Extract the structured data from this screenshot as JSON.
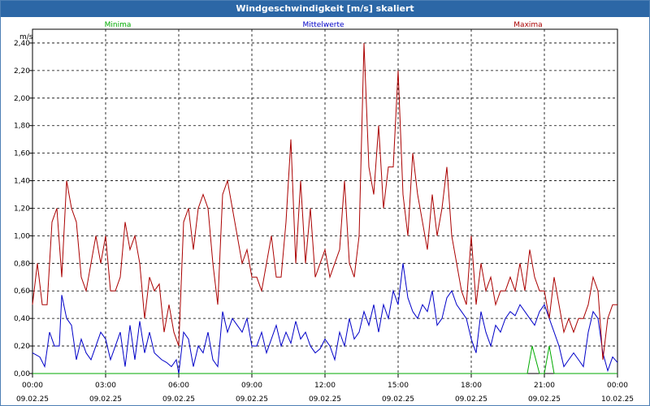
{
  "window": {
    "title": "Windgeschwindigkeit [m/s] skaliert"
  },
  "colors": {
    "minima": "#00aa00",
    "mittel": "#0000c8",
    "maxima": "#aa0000",
    "grid": "#000000",
    "titlebar": "#2c67a6"
  },
  "chart_data": {
    "type": "line",
    "title": "Windgeschwindigkeit [m/s] skaliert",
    "ylabel": "m/s",
    "ylim": [
      0,
      2.5
    ],
    "yticks": [
      "0,00",
      "0,20",
      "0,40",
      "0,60",
      "0,80",
      "1,00",
      "1,20",
      "1,40",
      "1,60",
      "1,80",
      "2,00",
      "2,20",
      "2,40"
    ],
    "xticks": [
      {
        "time": "00:00",
        "date": "09.02.25"
      },
      {
        "time": "03:00",
        "date": "09.02.25"
      },
      {
        "time": "06:00",
        "date": "09.02.25"
      },
      {
        "time": "09:00",
        "date": "09.02.25"
      },
      {
        "time": "12:00",
        "date": "09.02.25"
      },
      {
        "time": "15:00",
        "date": "09.02.25"
      },
      {
        "time": "18:00",
        "date": "09.02.25"
      },
      {
        "time": "21:00",
        "date": "09.02.25"
      },
      {
        "time": "00:00",
        "date": "10.02.25"
      }
    ],
    "x_unit": "hours since 09.02.25 00:00",
    "grid": true,
    "legend": "top",
    "series": [
      {
        "name": "Minima",
        "color": "#00aa00",
        "values": [
          [
            0,
            0
          ],
          [
            20.3,
            0
          ],
          [
            20.5,
            0.2
          ],
          [
            20.8,
            0
          ],
          [
            21,
            0
          ],
          [
            21.2,
            0.2
          ],
          [
            21.4,
            0
          ],
          [
            24,
            0
          ]
        ]
      },
      {
        "name": "Mittelwerte",
        "color": "#0000c8",
        "values": [
          [
            0,
            0.15
          ],
          [
            0.3,
            0.12
          ],
          [
            0.5,
            0.05
          ],
          [
            0.7,
            0.3
          ],
          [
            0.9,
            0.2
          ],
          [
            1.1,
            0.2
          ],
          [
            1.2,
            0.57
          ],
          [
            1.4,
            0.4
          ],
          [
            1.6,
            0.35
          ],
          [
            1.8,
            0.1
          ],
          [
            2.0,
            0.25
          ],
          [
            2.2,
            0.15
          ],
          [
            2.4,
            0.1
          ],
          [
            2.6,
            0.2
          ],
          [
            2.8,
            0.3
          ],
          [
            3.0,
            0.25
          ],
          [
            3.2,
            0.1
          ],
          [
            3.4,
            0.2
          ],
          [
            3.6,
            0.3
          ],
          [
            3.8,
            0.05
          ],
          [
            4.0,
            0.35
          ],
          [
            4.2,
            0.1
          ],
          [
            4.4,
            0.38
          ],
          [
            4.6,
            0.15
          ],
          [
            4.8,
            0.3
          ],
          [
            5.0,
            0.15
          ],
          [
            5.3,
            0.1
          ],
          [
            5.5,
            0.08
          ],
          [
            5.7,
            0.05
          ],
          [
            5.9,
            0.1
          ],
          [
            6.0,
            0.0
          ],
          [
            6.2,
            0.3
          ],
          [
            6.4,
            0.25
          ],
          [
            6.6,
            0.05
          ],
          [
            6.8,
            0.2
          ],
          [
            7.0,
            0.15
          ],
          [
            7.2,
            0.3
          ],
          [
            7.4,
            0.1
          ],
          [
            7.6,
            0.05
          ],
          [
            7.8,
            0.45
          ],
          [
            8.0,
            0.3
          ],
          [
            8.2,
            0.4
          ],
          [
            8.4,
            0.35
          ],
          [
            8.6,
            0.3
          ],
          [
            8.8,
            0.4
          ],
          [
            9.0,
            0.2
          ],
          [
            9.2,
            0.2
          ],
          [
            9.4,
            0.3
          ],
          [
            9.6,
            0.15
          ],
          [
            9.8,
            0.25
          ],
          [
            10.0,
            0.35
          ],
          [
            10.2,
            0.2
          ],
          [
            10.4,
            0.3
          ],
          [
            10.6,
            0.22
          ],
          [
            10.8,
            0.38
          ],
          [
            11.0,
            0.25
          ],
          [
            11.2,
            0.3
          ],
          [
            11.4,
            0.2
          ],
          [
            11.6,
            0.15
          ],
          [
            11.8,
            0.18
          ],
          [
            12.0,
            0.25
          ],
          [
            12.2,
            0.2
          ],
          [
            12.4,
            0.1
          ],
          [
            12.6,
            0.3
          ],
          [
            12.8,
            0.2
          ],
          [
            13.0,
            0.4
          ],
          [
            13.2,
            0.25
          ],
          [
            13.4,
            0.3
          ],
          [
            13.6,
            0.45
          ],
          [
            13.8,
            0.35
          ],
          [
            14.0,
            0.5
          ],
          [
            14.2,
            0.3
          ],
          [
            14.4,
            0.5
          ],
          [
            14.6,
            0.4
          ],
          [
            14.8,
            0.6
          ],
          [
            15.0,
            0.5
          ],
          [
            15.2,
            0.8
          ],
          [
            15.4,
            0.55
          ],
          [
            15.6,
            0.45
          ],
          [
            15.8,
            0.4
          ],
          [
            16.0,
            0.5
          ],
          [
            16.2,
            0.45
          ],
          [
            16.4,
            0.6
          ],
          [
            16.6,
            0.35
          ],
          [
            16.8,
            0.4
          ],
          [
            17.0,
            0.55
          ],
          [
            17.2,
            0.6
          ],
          [
            17.4,
            0.5
          ],
          [
            17.6,
            0.45
          ],
          [
            17.8,
            0.4
          ],
          [
            18.0,
            0.25
          ],
          [
            18.2,
            0.15
          ],
          [
            18.4,
            0.45
          ],
          [
            18.6,
            0.3
          ],
          [
            18.8,
            0.2
          ],
          [
            19.0,
            0.35
          ],
          [
            19.2,
            0.3
          ],
          [
            19.4,
            0.4
          ],
          [
            19.6,
            0.45
          ],
          [
            19.8,
            0.42
          ],
          [
            20.0,
            0.5
          ],
          [
            20.2,
            0.45
          ],
          [
            20.4,
            0.4
          ],
          [
            20.6,
            0.35
          ],
          [
            20.8,
            0.45
          ],
          [
            21.0,
            0.5
          ],
          [
            21.2,
            0.4
          ],
          [
            21.4,
            0.3
          ],
          [
            21.6,
            0.2
          ],
          [
            21.8,
            0.05
          ],
          [
            22.0,
            0.1
          ],
          [
            22.2,
            0.15
          ],
          [
            22.4,
            0.1
          ],
          [
            22.6,
            0.05
          ],
          [
            22.8,
            0.3
          ],
          [
            23.0,
            0.45
          ],
          [
            23.2,
            0.4
          ],
          [
            23.4,
            0.15
          ],
          [
            23.6,
            0.02
          ],
          [
            23.8,
            0.12
          ],
          [
            24.0,
            0.08
          ]
        ]
      },
      {
        "name": "Maxima",
        "color": "#aa0000",
        "values": [
          [
            0,
            0.5
          ],
          [
            0.2,
            0.8
          ],
          [
            0.4,
            0.5
          ],
          [
            0.6,
            0.5
          ],
          [
            0.8,
            1.1
          ],
          [
            1.0,
            1.2
          ],
          [
            1.2,
            0.7
          ],
          [
            1.4,
            1.4
          ],
          [
            1.6,
            1.2
          ],
          [
            1.8,
            1.1
          ],
          [
            2.0,
            0.7
          ],
          [
            2.2,
            0.6
          ],
          [
            2.4,
            0.8
          ],
          [
            2.6,
            1.0
          ],
          [
            2.8,
            0.8
          ],
          [
            3.0,
            1.0
          ],
          [
            3.2,
            0.6
          ],
          [
            3.4,
            0.6
          ],
          [
            3.6,
            0.7
          ],
          [
            3.8,
            1.1
          ],
          [
            4.0,
            0.9
          ],
          [
            4.2,
            1.0
          ],
          [
            4.4,
            0.8
          ],
          [
            4.6,
            0.4
          ],
          [
            4.8,
            0.7
          ],
          [
            5.0,
            0.6
          ],
          [
            5.2,
            0.65
          ],
          [
            5.4,
            0.3
          ],
          [
            5.6,
            0.5
          ],
          [
            5.8,
            0.3
          ],
          [
            6.0,
            0.2
          ],
          [
            6.2,
            1.1
          ],
          [
            6.4,
            1.2
          ],
          [
            6.6,
            0.9
          ],
          [
            6.8,
            1.2
          ],
          [
            7.0,
            1.3
          ],
          [
            7.2,
            1.2
          ],
          [
            7.4,
            0.8
          ],
          [
            7.6,
            0.5
          ],
          [
            7.8,
            1.3
          ],
          [
            8.0,
            1.4
          ],
          [
            8.2,
            1.2
          ],
          [
            8.4,
            1.0
          ],
          [
            8.6,
            0.8
          ],
          [
            8.8,
            0.9
          ],
          [
            9.0,
            0.7
          ],
          [
            9.2,
            0.7
          ],
          [
            9.4,
            0.6
          ],
          [
            9.6,
            0.8
          ],
          [
            9.8,
            1.0
          ],
          [
            10.0,
            0.7
          ],
          [
            10.2,
            0.7
          ],
          [
            10.4,
            1.1
          ],
          [
            10.6,
            1.7
          ],
          [
            10.8,
            0.8
          ],
          [
            11.0,
            1.4
          ],
          [
            11.2,
            0.8
          ],
          [
            11.4,
            1.2
          ],
          [
            11.6,
            0.7
          ],
          [
            11.8,
            0.8
          ],
          [
            12.0,
            0.9
          ],
          [
            12.2,
            0.7
          ],
          [
            12.4,
            0.8
          ],
          [
            12.6,
            0.9
          ],
          [
            12.8,
            1.4
          ],
          [
            13.0,
            0.8
          ],
          [
            13.2,
            0.7
          ],
          [
            13.4,
            1.0
          ],
          [
            13.6,
            2.4
          ],
          [
            13.8,
            1.5
          ],
          [
            14.0,
            1.3
          ],
          [
            14.2,
            1.8
          ],
          [
            14.4,
            1.2
          ],
          [
            14.6,
            1.5
          ],
          [
            14.8,
            1.5
          ],
          [
            15.0,
            2.2
          ],
          [
            15.2,
            1.3
          ],
          [
            15.4,
            1.0
          ],
          [
            15.6,
            1.6
          ],
          [
            15.8,
            1.3
          ],
          [
            16.0,
            1.1
          ],
          [
            16.2,
            0.9
          ],
          [
            16.4,
            1.3
          ],
          [
            16.6,
            1.0
          ],
          [
            16.8,
            1.2
          ],
          [
            17.0,
            1.5
          ],
          [
            17.2,
            1.0
          ],
          [
            17.4,
            0.8
          ],
          [
            17.6,
            0.6
          ],
          [
            17.8,
            0.5
          ],
          [
            18.0,
            1.0
          ],
          [
            18.2,
            0.5
          ],
          [
            18.4,
            0.8
          ],
          [
            18.6,
            0.6
          ],
          [
            18.8,
            0.7
          ],
          [
            19.0,
            0.5
          ],
          [
            19.2,
            0.6
          ],
          [
            19.4,
            0.6
          ],
          [
            19.6,
            0.7
          ],
          [
            19.8,
            0.6
          ],
          [
            20.0,
            0.8
          ],
          [
            20.2,
            0.6
          ],
          [
            20.4,
            0.9
          ],
          [
            20.6,
            0.7
          ],
          [
            20.8,
            0.6
          ],
          [
            21.0,
            0.6
          ],
          [
            21.2,
            0.4
          ],
          [
            21.4,
            0.7
          ],
          [
            21.6,
            0.5
          ],
          [
            21.8,
            0.3
          ],
          [
            22.0,
            0.4
          ],
          [
            22.2,
            0.3
          ],
          [
            22.4,
            0.4
          ],
          [
            22.6,
            0.4
          ],
          [
            22.8,
            0.5
          ],
          [
            23.0,
            0.7
          ],
          [
            23.2,
            0.6
          ],
          [
            23.4,
            0.1
          ],
          [
            23.6,
            0.4
          ],
          [
            23.8,
            0.5
          ],
          [
            24.0,
            0.5
          ]
        ]
      }
    ]
  }
}
